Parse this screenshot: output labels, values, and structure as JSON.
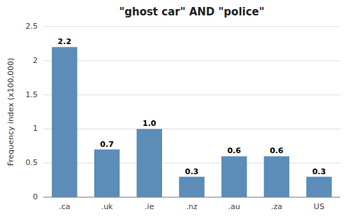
{
  "chart_data": {
    "type": "bar",
    "title": "\"ghost car\" AND \"police\"",
    "categories": [
      ".ca",
      ".uk",
      ".ie",
      ".nz",
      ".au",
      ".za",
      "US"
    ],
    "values": [
      2.2,
      0.7,
      1.0,
      0.3,
      0.6,
      0.6,
      0.3
    ],
    "value_labels": [
      "2.2",
      "0.7",
      "1.0",
      "0.3",
      "0.6",
      "0.6",
      "0.3"
    ],
    "data_labels": true,
    "color": "#5b8db8",
    "ylabel": "Frequency index (x100,000)",
    "ylim": [
      0,
      2.5
    ],
    "yticks": [
      0,
      0.5,
      1,
      1.5,
      2,
      2.5
    ],
    "grid": true
  }
}
